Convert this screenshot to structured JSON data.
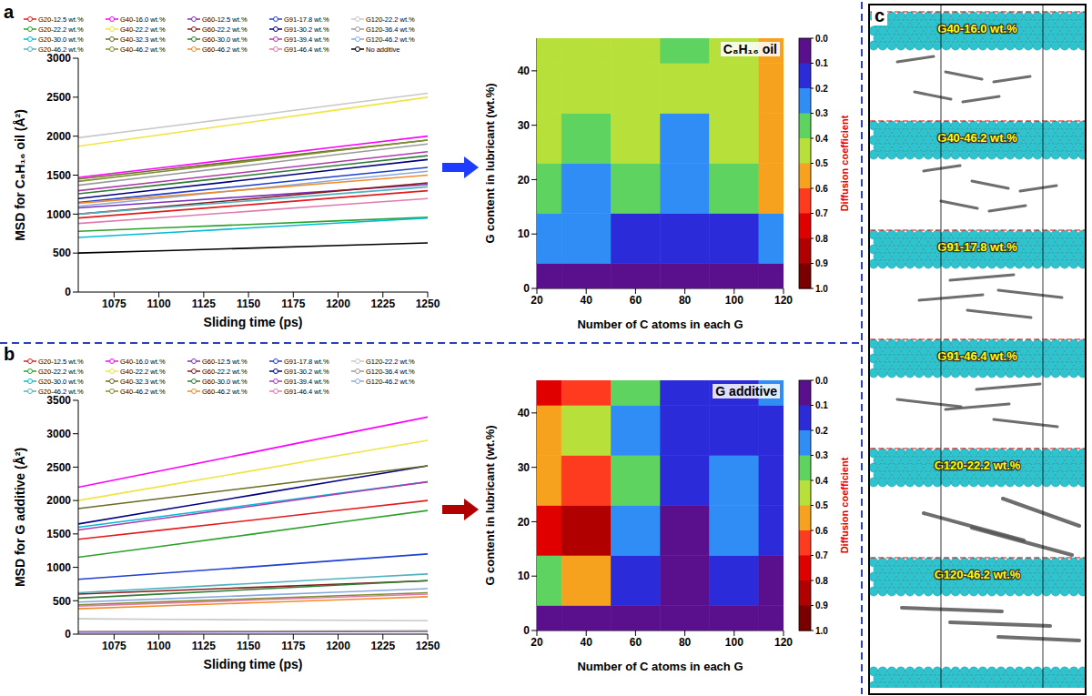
{
  "chart_data": [
    {
      "type": "line",
      "panel": "a",
      "xlabel": "Sliding time (ps)",
      "ylabel": "MSD for C₈H₁₆ oil (Å²)",
      "legend": "top",
      "x": [
        1055,
        1104,
        1153,
        1201,
        1250
      ],
      "xlim": [
        1055,
        1250
      ],
      "xticks": [
        1075,
        1100,
        1125,
        1150,
        1175,
        1200,
        1225,
        1250
      ],
      "ylim": [
        0,
        3000
      ],
      "yticks": [
        0,
        500,
        1000,
        1500,
        2000,
        2500,
        3000
      ],
      "series": [
        {
          "name": "G20-12.5 wt.%",
          "color": "#e41a1c",
          "values": [
            950,
            1038,
            1125,
            1212,
            1300
          ]
        },
        {
          "name": "G40-16.0 wt.%",
          "color": "#ff00ff",
          "values": [
            1470,
            1602,
            1735,
            1868,
            2000
          ]
        },
        {
          "name": "G60-12.5 wt.%",
          "color": "#7b2fbe",
          "values": [
            1080,
            1155,
            1230,
            1305,
            1380
          ]
        },
        {
          "name": "G91-17.8 wt.%",
          "color": "#1f3fd0",
          "values": [
            1150,
            1262,
            1375,
            1488,
            1600
          ]
        },
        {
          "name": "G120-22.2 wt.%",
          "color": "#c8c8c8",
          "values": [
            1980,
            2122,
            2265,
            2408,
            2550
          ]
        },
        {
          "name": "G20-22.2 wt.%",
          "color": "#2ca02c",
          "values": [
            780,
            825,
            870,
            915,
            960
          ]
        },
        {
          "name": "G40-22.2 wt.%",
          "color": "#f0e442",
          "values": [
            1870,
            2028,
            2185,
            2342,
            2500
          ]
        },
        {
          "name": "G60-22.2 wt.%",
          "color": "#8b1a1a",
          "values": [
            1000,
            1100,
            1200,
            1300,
            1400
          ]
        },
        {
          "name": "G91-30.2 wt.%",
          "color": "#000080",
          "values": [
            1200,
            1325,
            1450,
            1575,
            1700
          ]
        },
        {
          "name": "G120-36.4 wt.%",
          "color": "#9a9a9a",
          "values": [
            1370,
            1502,
            1635,
            1768,
            1900
          ]
        },
        {
          "name": "G20-30.0 wt.%",
          "color": "#00bcd4",
          "values": [
            700,
            762,
            825,
            888,
            950
          ]
        },
        {
          "name": "G40-32.3 wt.%",
          "color": "#6b6b23",
          "values": [
            1450,
            1575,
            1700,
            1825,
            1950
          ]
        },
        {
          "name": "G60-30.0 wt.%",
          "color": "#2e7d32",
          "values": [
            1260,
            1382,
            1505,
            1628,
            1750
          ]
        },
        {
          "name": "G91-39.4 wt.%",
          "color": "#b03ab0",
          "values": [
            1300,
            1425,
            1550,
            1675,
            1800
          ]
        },
        {
          "name": "G120-46.2 wt.%",
          "color": "#87a9e0",
          "values": [
            1100,
            1212,
            1325,
            1438,
            1550
          ]
        },
        {
          "name": "G20-46.2 wt.%",
          "color": "#4fb3bf",
          "values": [
            1000,
            1088,
            1175,
            1262,
            1350
          ]
        },
        {
          "name": "G40-46.2 wt.%",
          "color": "#7f8f2f",
          "values": [
            1420,
            1552,
            1685,
            1818,
            1950
          ]
        },
        {
          "name": "G60-46.2 wt.%",
          "color": "#f28c28",
          "values": [
            1140,
            1230,
            1320,
            1410,
            1500
          ]
        },
        {
          "name": "G91-46.4 wt.%",
          "color": "#e07bb0",
          "values": [
            880,
            960,
            1040,
            1120,
            1200
          ]
        },
        {
          "name": "No additive",
          "color": "#000000",
          "values": [
            500,
            532,
            565,
            598,
            630
          ]
        }
      ]
    },
    {
      "type": "heatmap",
      "title": "C₈H₁₆ oil",
      "xlabel": "Number of C atoms in each G",
      "ylabel": "G content in lubricant (wt.%)",
      "x": [
        20,
        40,
        60,
        80,
        100,
        120
      ],
      "y": [
        0,
        9.2,
        18.4,
        27.6,
        36.8,
        46
      ],
      "values": [
        [
          0.05,
          0.05,
          0.05,
          0.05,
          0.05,
          0.05
        ],
        [
          0.25,
          0.2,
          0.15,
          0.12,
          0.18,
          0.2
        ],
        [
          0.35,
          0.25,
          0.3,
          0.25,
          0.3,
          0.5
        ],
        [
          0.45,
          0.35,
          0.4,
          0.25,
          0.4,
          0.55
        ],
        [
          0.4,
          0.45,
          0.4,
          0.4,
          0.45,
          0.55
        ],
        [
          0.45,
          0.4,
          0.45,
          0.35,
          0.4,
          0.55
        ]
      ],
      "xlim": [
        20,
        120
      ],
      "xticks": [
        20,
        40,
        60,
        80,
        100,
        120
      ],
      "ylim": [
        0,
        46
      ],
      "yticks": [
        0,
        10,
        20,
        30,
        40
      ],
      "colorbar": {
        "label": "Diffusion coefficient",
        "range": [
          0,
          1
        ],
        "ticks": [
          {
            "value": 0,
            "label": "0.0"
          },
          0.1,
          0.2,
          0.3,
          0.4,
          0.5,
          0.6,
          0.7,
          0.8,
          0.9,
          {
            "value": 1,
            "label": "1.0"
          }
        ]
      }
    },
    {
      "type": "line",
      "panel": "b",
      "xlabel": "Sliding time (ps)",
      "ylabel": "MSD for G additive (Å²)",
      "legend": "top",
      "x": [
        1055,
        1104,
        1153,
        1201,
        1250
      ],
      "xlim": [
        1055,
        1250
      ],
      "xticks": [
        1075,
        1100,
        1125,
        1150,
        1175,
        1200,
        1225,
        1250
      ],
      "ylim": [
        0,
        3500
      ],
      "yticks": [
        0,
        500,
        1000,
        1500,
        2000,
        2500,
        3000,
        3500
      ],
      "series": [
        {
          "name": "G20-12.5 wt.%",
          "color": "#e41a1c",
          "values": [
            1420,
            1565,
            1710,
            1855,
            2000
          ]
        },
        {
          "name": "G40-16.0 wt.%",
          "color": "#ff00ff",
          "values": [
            2200,
            2462,
            2725,
            2988,
            3250
          ]
        },
        {
          "name": "G60-12.5 wt.%",
          "color": "#7b2fbe",
          "values": [
            30,
            32,
            35,
            38,
            40
          ]
        },
        {
          "name": "G91-17.8 wt.%",
          "color": "#1f3fd0",
          "values": [
            820,
            915,
            1010,
            1105,
            1200
          ]
        },
        {
          "name": "G120-22.2 wt.%",
          "color": "#c8c8c8",
          "values": [
            230,
            222,
            215,
            208,
            200
          ]
        },
        {
          "name": "G20-22.2 wt.%",
          "color": "#2ca02c",
          "values": [
            1150,
            1325,
            1500,
            1675,
            1850
          ]
        },
        {
          "name": "G40-22.2 wt.%",
          "color": "#f0e442",
          "values": [
            2000,
            2225,
            2450,
            2675,
            2900
          ]
        },
        {
          "name": "G60-22.2 wt.%",
          "color": "#8b1a1a",
          "values": [
            600,
            650,
            700,
            750,
            800
          ]
        },
        {
          "name": "G91-30.2 wt.%",
          "color": "#000080",
          "values": [
            1650,
            1868,
            2085,
            2302,
            2520
          ]
        },
        {
          "name": "G120-36.4 wt.%",
          "color": "#9a9a9a",
          "values": [
            40,
            42,
            45,
            48,
            50
          ]
        },
        {
          "name": "G20-30.0 wt.%",
          "color": "#00bcd4",
          "values": [
            1600,
            1770,
            1940,
            2110,
            2280
          ]
        },
        {
          "name": "G40-32.3 wt.%",
          "color": "#6b6b23",
          "values": [
            1880,
            2040,
            2200,
            2360,
            2520
          ]
        },
        {
          "name": "G60-30.0 wt.%",
          "color": "#2e7d32",
          "values": [
            540,
            605,
            670,
            735,
            800
          ]
        },
        {
          "name": "G91-39.4 wt.%",
          "color": "#b03ab0",
          "values": [
            1560,
            1740,
            1920,
            2100,
            2280
          ]
        },
        {
          "name": "G120-46.2 wt.%",
          "color": "#87a9e0",
          "values": [
            480,
            530,
            580,
            630,
            680
          ]
        },
        {
          "name": "G20-46.2 wt.%",
          "color": "#4fb3bf",
          "values": [
            620,
            690,
            760,
            830,
            900
          ]
        },
        {
          "name": "G40-46.2 wt.%",
          "color": "#7f8f2f",
          "values": [
            440,
            485,
            530,
            575,
            620
          ]
        },
        {
          "name": "G60-46.2 wt.%",
          "color": "#f28c28",
          "values": [
            380,
            425,
            470,
            515,
            560
          ]
        },
        {
          "name": "G91-46.4 wt.%",
          "color": "#e07bb0",
          "values": [
            420,
            465,
            510,
            555,
            600
          ]
        }
      ]
    },
    {
      "type": "heatmap",
      "title": "G additive",
      "xlabel": "Number of C atoms in each G",
      "ylabel": "G content in lubricant (wt.%)",
      "x": [
        20,
        40,
        60,
        80,
        100,
        120
      ],
      "y": [
        0,
        9.2,
        18.4,
        27.6,
        36.8,
        46
      ],
      "values": [
        [
          0.02,
          0.02,
          0.02,
          0.02,
          0.02,
          0.02
        ],
        [
          0.35,
          0.5,
          0.15,
          0.05,
          0.1,
          0.05
        ],
        [
          0.75,
          0.88,
          0.25,
          0.05,
          0.25,
          0.1
        ],
        [
          0.55,
          0.6,
          0.3,
          0.1,
          0.2,
          0.1
        ],
        [
          0.55,
          0.45,
          0.25,
          0.15,
          0.15,
          0.15
        ],
        [
          0.75,
          0.6,
          0.3,
          0.15,
          0.15,
          0.2
        ]
      ],
      "xlim": [
        20,
        120
      ],
      "xticks": [
        20,
        40,
        60,
        80,
        100,
        120
      ],
      "ylim": [
        0,
        46
      ],
      "yticks": [
        0,
        10,
        20,
        30,
        40
      ],
      "colorbar": {
        "label": "Diffusion coefficient",
        "range": [
          0,
          1
        ],
        "ticks": [
          {
            "value": 0,
            "label": "0.0"
          },
          0.1,
          0.2,
          0.3,
          0.4,
          0.5,
          0.6,
          0.7,
          0.8,
          0.9,
          {
            "value": 1,
            "label": "1.0"
          }
        ]
      }
    }
  ],
  "panel_c": {
    "panel": "c",
    "labels": [
      "G40-16.0 wt.%",
      "G40-46.2 wt.%",
      "G91-17.8 wt.%",
      "G91-46.4 wt.%",
      "G120-22.2 wt.%",
      "G120-46.2 wt.%"
    ]
  }
}
